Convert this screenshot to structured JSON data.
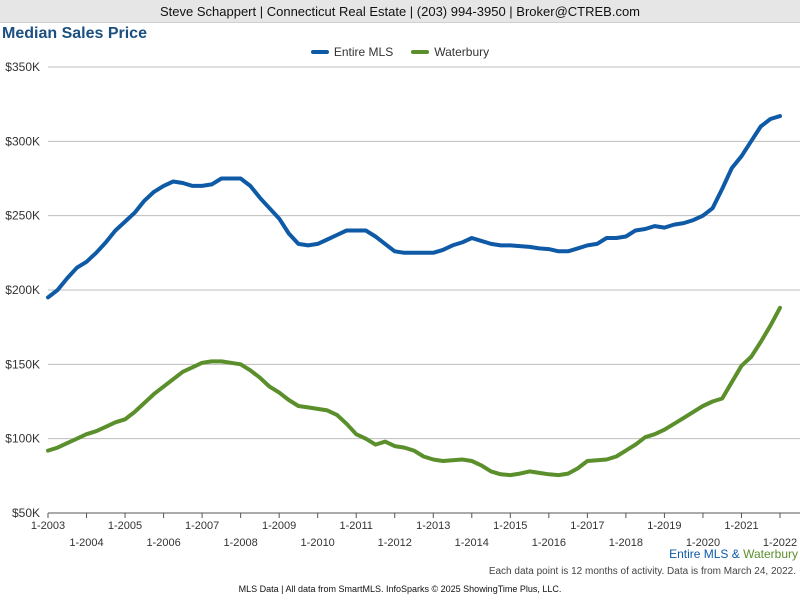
{
  "header": {
    "text": "Steve Schappert | Connecticut Real Estate | (203) 994-3950 | Broker@CTREB.com"
  },
  "chart_data": {
    "type": "line",
    "title": "Median Sales Price",
    "ylabel": "",
    "xlabel": "",
    "ylim": [
      50000,
      350000
    ],
    "xlim": [
      2003.0,
      2022.0
    ],
    "grid": true,
    "legend_position": "top-center",
    "y_ticks": [
      {
        "value": 50000,
        "label": "$50K"
      },
      {
        "value": 100000,
        "label": "$100K"
      },
      {
        "value": 150000,
        "label": "$150K"
      },
      {
        "value": 200000,
        "label": "$200K"
      },
      {
        "value": 250000,
        "label": "$250K"
      },
      {
        "value": 300000,
        "label": "$300K"
      },
      {
        "value": 350000,
        "label": "$350K"
      }
    ],
    "x_ticks": [
      {
        "value": 2003,
        "label": "1-2003"
      },
      {
        "value": 2004,
        "label": "1-2004"
      },
      {
        "value": 2005,
        "label": "1-2005"
      },
      {
        "value": 2006,
        "label": "1-2006"
      },
      {
        "value": 2007,
        "label": "1-2007"
      },
      {
        "value": 2008,
        "label": "1-2008"
      },
      {
        "value": 2009,
        "label": "1-2009"
      },
      {
        "value": 2010,
        "label": "1-2010"
      },
      {
        "value": 2011,
        "label": "1-2011"
      },
      {
        "value": 2012,
        "label": "1-2012"
      },
      {
        "value": 2013,
        "label": "1-2013"
      },
      {
        "value": 2014,
        "label": "1-2014"
      },
      {
        "value": 2015,
        "label": "1-2015"
      },
      {
        "value": 2016,
        "label": "1-2016"
      },
      {
        "value": 2017,
        "label": "1-2017"
      },
      {
        "value": 2018,
        "label": "1-2018"
      },
      {
        "value": 2019,
        "label": "1-2019"
      },
      {
        "value": 2020,
        "label": "1-2020"
      },
      {
        "value": 2021,
        "label": "1-2021"
      },
      {
        "value": 2022,
        "label": "1-2022"
      }
    ],
    "series": [
      {
        "name": "Entire MLS",
        "color": "#0e5aa6",
        "points": [
          [
            2003.0,
            195000
          ],
          [
            2003.25,
            200000
          ],
          [
            2003.5,
            208000
          ],
          [
            2003.75,
            215000
          ],
          [
            2004.0,
            219000
          ],
          [
            2004.25,
            225000
          ],
          [
            2004.5,
            232000
          ],
          [
            2004.75,
            240000
          ],
          [
            2005.0,
            246000
          ],
          [
            2005.25,
            252000
          ],
          [
            2005.5,
            260000
          ],
          [
            2005.75,
            266000
          ],
          [
            2006.0,
            270000
          ],
          [
            2006.25,
            273000
          ],
          [
            2006.5,
            272000
          ],
          [
            2006.75,
            270000
          ],
          [
            2007.0,
            270000
          ],
          [
            2007.25,
            271000
          ],
          [
            2007.5,
            275000
          ],
          [
            2007.75,
            275000
          ],
          [
            2008.0,
            275000
          ],
          [
            2008.25,
            270000
          ],
          [
            2008.5,
            262000
          ],
          [
            2008.75,
            255000
          ],
          [
            2009.0,
            248000
          ],
          [
            2009.25,
            238000
          ],
          [
            2009.5,
            231000
          ],
          [
            2009.75,
            230000
          ],
          [
            2010.0,
            231000
          ],
          [
            2010.25,
            234000
          ],
          [
            2010.5,
            237000
          ],
          [
            2010.75,
            240000
          ],
          [
            2011.0,
            240000
          ],
          [
            2011.25,
            240000
          ],
          [
            2011.5,
            236000
          ],
          [
            2011.75,
            231000
          ],
          [
            2012.0,
            226000
          ],
          [
            2012.25,
            225000
          ],
          [
            2012.5,
            225000
          ],
          [
            2012.75,
            225000
          ],
          [
            2013.0,
            225000
          ],
          [
            2013.25,
            227000
          ],
          [
            2013.5,
            230000
          ],
          [
            2013.75,
            232000
          ],
          [
            2014.0,
            235000
          ],
          [
            2014.25,
            233000
          ],
          [
            2014.5,
            231000
          ],
          [
            2014.75,
            230000
          ],
          [
            2015.0,
            230000
          ],
          [
            2015.25,
            229500
          ],
          [
            2015.5,
            229000
          ],
          [
            2015.75,
            228000
          ],
          [
            2016.0,
            227500
          ],
          [
            2016.25,
            226000
          ],
          [
            2016.5,
            226000
          ],
          [
            2016.75,
            228000
          ],
          [
            2017.0,
            230000
          ],
          [
            2017.25,
            231000
          ],
          [
            2017.5,
            235000
          ],
          [
            2017.75,
            235000
          ],
          [
            2018.0,
            236000
          ],
          [
            2018.25,
            240000
          ],
          [
            2018.5,
            241000
          ],
          [
            2018.75,
            243000
          ],
          [
            2019.0,
            242000
          ],
          [
            2019.25,
            244000
          ],
          [
            2019.5,
            245000
          ],
          [
            2019.75,
            247000
          ],
          [
            2020.0,
            250000
          ],
          [
            2020.25,
            255000
          ],
          [
            2020.5,
            268000
          ],
          [
            2020.75,
            282000
          ],
          [
            2021.0,
            290000
          ],
          [
            2021.25,
            300000
          ],
          [
            2021.5,
            310000
          ],
          [
            2021.75,
            315000
          ],
          [
            2022.0,
            317000
          ]
        ]
      },
      {
        "name": "Waterbury",
        "color": "#5a8f2c",
        "points": [
          [
            2003.0,
            92000
          ],
          [
            2003.25,
            94000
          ],
          [
            2003.5,
            97000
          ],
          [
            2003.75,
            100000
          ],
          [
            2004.0,
            103000
          ],
          [
            2004.25,
            105000
          ],
          [
            2004.5,
            108000
          ],
          [
            2004.75,
            111000
          ],
          [
            2005.0,
            113000
          ],
          [
            2005.25,
            118000
          ],
          [
            2005.5,
            124000
          ],
          [
            2005.75,
            130000
          ],
          [
            2006.0,
            135000
          ],
          [
            2006.25,
            140000
          ],
          [
            2006.5,
            145000
          ],
          [
            2006.75,
            148000
          ],
          [
            2007.0,
            151000
          ],
          [
            2007.25,
            152000
          ],
          [
            2007.5,
            152000
          ],
          [
            2007.75,
            151000
          ],
          [
            2008.0,
            150000
          ],
          [
            2008.25,
            146000
          ],
          [
            2008.5,
            141000
          ],
          [
            2008.75,
            135000
          ],
          [
            2009.0,
            131000
          ],
          [
            2009.25,
            126000
          ],
          [
            2009.5,
            122000
          ],
          [
            2009.75,
            121000
          ],
          [
            2010.0,
            120000
          ],
          [
            2010.25,
            119000
          ],
          [
            2010.5,
            116000
          ],
          [
            2010.75,
            110000
          ],
          [
            2011.0,
            103000
          ],
          [
            2011.25,
            100000
          ],
          [
            2011.5,
            96000
          ],
          [
            2011.75,
            98000
          ],
          [
            2012.0,
            95000
          ],
          [
            2012.25,
            94000
          ],
          [
            2012.5,
            92000
          ],
          [
            2012.75,
            88000
          ],
          [
            2013.0,
            86000
          ],
          [
            2013.25,
            85000
          ],
          [
            2013.5,
            85500
          ],
          [
            2013.75,
            86000
          ],
          [
            2014.0,
            85000
          ],
          [
            2014.25,
            82000
          ],
          [
            2014.5,
            78000
          ],
          [
            2014.75,
            76000
          ],
          [
            2015.0,
            75500
          ],
          [
            2015.25,
            76500
          ],
          [
            2015.5,
            78000
          ],
          [
            2015.75,
            77000
          ],
          [
            2016.0,
            76000
          ],
          [
            2016.25,
            75500
          ],
          [
            2016.5,
            76500
          ],
          [
            2016.75,
            80000
          ],
          [
            2017.0,
            85000
          ],
          [
            2017.25,
            85500
          ],
          [
            2017.5,
            86000
          ],
          [
            2017.75,
            88000
          ],
          [
            2018.0,
            92000
          ],
          [
            2018.25,
            96000
          ],
          [
            2018.5,
            101000
          ],
          [
            2018.75,
            103000
          ],
          [
            2019.0,
            106000
          ],
          [
            2019.25,
            110000
          ],
          [
            2019.5,
            114000
          ],
          [
            2019.75,
            118000
          ],
          [
            2020.0,
            122000
          ],
          [
            2020.25,
            125000
          ],
          [
            2020.5,
            127000
          ],
          [
            2020.75,
            138000
          ],
          [
            2021.0,
            149000
          ],
          [
            2021.25,
            155000
          ],
          [
            2021.5,
            165000
          ],
          [
            2021.75,
            176000
          ],
          [
            2022.0,
            188000
          ]
        ]
      }
    ]
  },
  "sub_legend": {
    "first": "Entire MLS",
    "separator": " & ",
    "second": "Waterbury"
  },
  "footnote": "Each data point is 12 months of activity. Data is from March 24, 2022.",
  "footer": "MLS Data | All data from SmartMLS. InfoSparks © 2025 ShowingTime Plus, LLC."
}
